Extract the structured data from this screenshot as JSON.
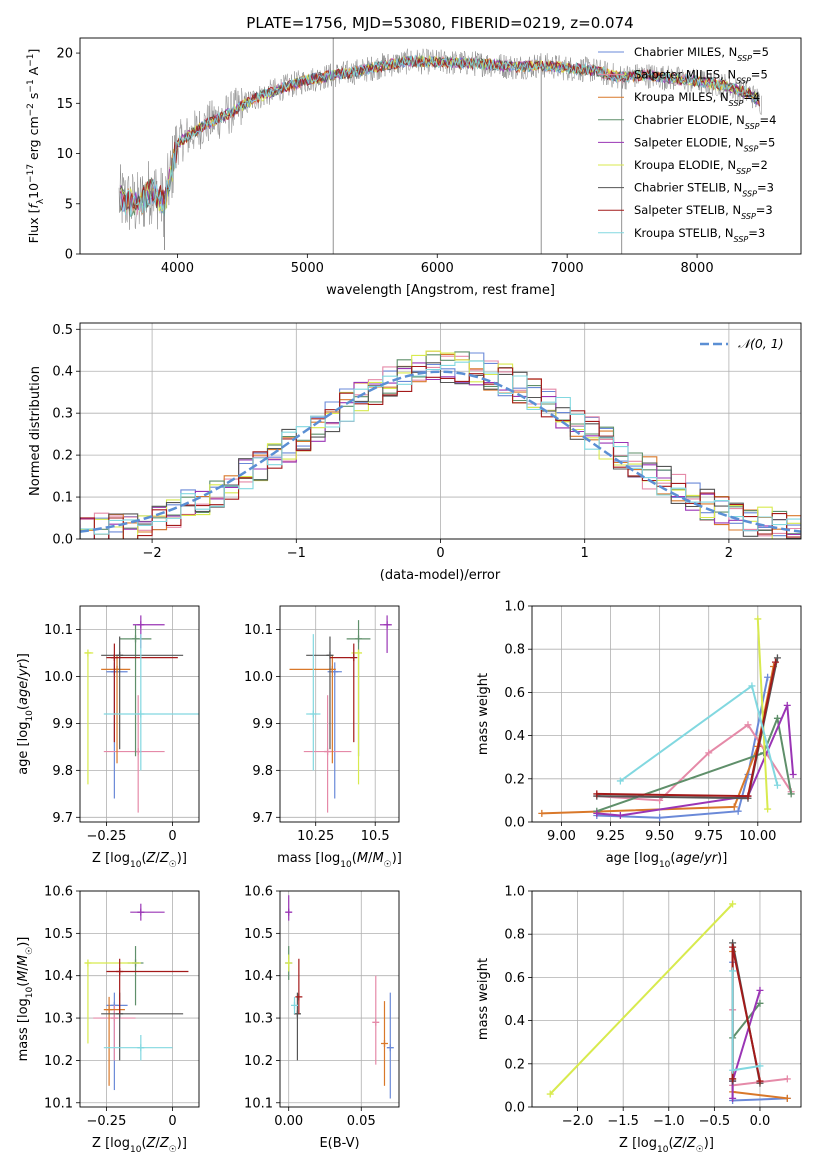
{
  "figure": {
    "title": "PLATE=1756, MJD=53080, FIBERID=0219, z=0.074"
  },
  "palette": {
    "Chabrier MILES": "#6a89d8",
    "Salpeter MILES": "#e58aa8",
    "Kroupa MILES": "#d9782a",
    "Chabrier ELODIE": "#5f8f6a",
    "Salpeter ELODIE": "#9a35b5",
    "Kroupa ELODIE": "#d8ea4e",
    "Chabrier STELIB": "#555555",
    "Salpeter STELIB": "#a31a1a",
    "Kroupa STELIB": "#82d8e0",
    "spectrum": "#888888",
    "normal": "#5b8fd4"
  },
  "chart_data": [
    {
      "id": "spectrum",
      "type": "line",
      "xlabel": "wavelength [Angstrom, rest frame]",
      "ylabel": "Flux [f_λ 10^-17 erg cm^-2 s^-1 A^-1]",
      "xlim": [
        3250,
        8800
      ],
      "ylim": [
        0,
        21.5
      ],
      "xticks": [
        4000,
        5000,
        6000,
        7000,
        8000
      ],
      "yticks": [
        0,
        5,
        10,
        15,
        20
      ],
      "grid": false,
      "legend_position": "top-right",
      "legend": [
        {
          "base": "Chabrier MILES, N",
          "n": "5"
        },
        {
          "base": "Salpeter MILES, N",
          "n": "5"
        },
        {
          "base": "Kroupa MILES, N",
          "n": "4"
        },
        {
          "base": "Chabrier ELODIE, N",
          "n": "4"
        },
        {
          "base": "Salpeter ELODIE, N",
          "n": "5"
        },
        {
          "base": "Kroupa ELODIE, N",
          "n": "2"
        },
        {
          "base": "Chabrier STELIB, N",
          "n": "3"
        },
        {
          "base": "Salpeter STELIB, N",
          "n": "3"
        },
        {
          "base": "Kroupa STELIB, N",
          "n": "3"
        }
      ],
      "continuum": [
        [
          3550,
          5.5
        ],
        [
          3700,
          4.8
        ],
        [
          3800,
          6.5
        ],
        [
          3900,
          5
        ],
        [
          4000,
          11
        ],
        [
          4200,
          12.8
        ],
        [
          4400,
          14
        ],
        [
          4600,
          15.5
        ],
        [
          4800,
          16.5
        ],
        [
          5000,
          17.3
        ],
        [
          5200,
          17.8
        ],
        [
          5400,
          18.2
        ],
        [
          5600,
          18.8
        ],
        [
          5800,
          19.2
        ],
        [
          6000,
          19.1
        ],
        [
          6200,
          19
        ],
        [
          6400,
          18.9
        ],
        [
          6600,
          18.6
        ],
        [
          6800,
          18.8
        ],
        [
          7000,
          18.5
        ],
        [
          7200,
          18.3
        ],
        [
          7400,
          17.6
        ],
        [
          7600,
          17.8
        ],
        [
          7800,
          17.5
        ],
        [
          8000,
          17.2
        ],
        [
          8200,
          16.8
        ],
        [
          8400,
          16
        ],
        [
          8500,
          15
        ]
      ],
      "features": [
        {
          "x": 5199,
          "y0": 0,
          "y1": 21.5
        },
        {
          "x": 6800,
          "y0": 0,
          "y1": 18.5
        },
        {
          "x": 7420,
          "y0": 0,
          "y1": 17.5
        },
        {
          "x": 3900,
          "y0": 0.4,
          "y1": 5
        }
      ]
    },
    {
      "id": "residuals",
      "type": "step-histogram",
      "xlabel": "(data-model)/error",
      "ylabel": "Normed distribution",
      "xlim": [
        -2.5,
        2.5
      ],
      "ylim": [
        0,
        0.515
      ],
      "xticks": [
        -2,
        -1,
        0,
        1,
        2
      ],
      "yticks": [
        0.0,
        0.1,
        0.2,
        0.3,
        0.4,
        0.5
      ],
      "grid": true,
      "legend_position": "top-right",
      "legend_label": "𝒩(0, 1)"
    },
    {
      "id": "age-vs-Z",
      "type": "errorbar",
      "xlabel": "Z [log10(Z/Z☉)]",
      "ylabel": "age [log10(age/yr)]",
      "xlim": [
        -0.35,
        0.1
      ],
      "ylim": [
        9.69,
        10.15
      ],
      "xticks": [
        -0.25,
        0.0
      ],
      "yticks": [
        9.7,
        9.8,
        9.9,
        10.0,
        10.1
      ],
      "grid": true,
      "points": [
        {
          "model": "Chabrier MILES",
          "x": -0.22,
          "xerr": [
            0.03,
            0.05
          ],
          "y": 10.01,
          "yerr": [
            0.27,
            0.02
          ]
        },
        {
          "model": "Salpeter MILES",
          "x": -0.13,
          "xerr": [
            0.13,
            0.1
          ],
          "y": 9.84,
          "yerr": [
            0.13,
            0.12
          ]
        },
        {
          "model": "Kroupa MILES",
          "x": -0.21,
          "xerr": [
            0.06,
            0.05
          ],
          "y": 10.015,
          "yerr": [
            0.2,
            0.03
          ]
        },
        {
          "model": "Chabrier ELODIE",
          "x": -0.14,
          "xerr": [
            0.06,
            0.06
          ],
          "y": 10.08,
          "yerr": [
            0.25,
            0.03
          ]
        },
        {
          "model": "Salpeter ELODIE",
          "x": -0.12,
          "xerr": [
            0.03,
            0.09
          ],
          "y": 10.11,
          "yerr": [
            0.05,
            0.02
          ]
        },
        {
          "model": "Kroupa ELODIE",
          "x": -0.32,
          "xerr": [
            0.01,
            0.02
          ],
          "y": 10.05,
          "yerr": [
            0.28,
            0.0
          ]
        },
        {
          "model": "Chabrier STELIB",
          "x": -0.2,
          "xerr": [
            0.07,
            0.24
          ],
          "y": 10.045,
          "yerr": [
            0.2,
            0.04
          ]
        },
        {
          "model": "Salpeter STELIB",
          "x": -0.22,
          "xerr": [
            0.03,
            0.24
          ],
          "y": 10.04,
          "yerr": [
            0.18,
            0.03
          ]
        },
        {
          "model": "Kroupa STELIB",
          "x": -0.12,
          "xerr": [
            0.14,
            0.22
          ],
          "y": 9.92,
          "yerr": [
            0.12,
            0.17
          ]
        }
      ]
    },
    {
      "id": "age-vs-mass",
      "type": "errorbar",
      "xlabel": "mass [log10(M/M☉)]",
      "ylabel": "",
      "xlim": [
        10.1,
        10.6
      ],
      "ylim": [
        9.69,
        10.15
      ],
      "xticks": [
        10.25,
        10.5
      ],
      "yticks": [
        9.7,
        9.8,
        9.9,
        10.0,
        10.1
      ],
      "grid": true,
      "points": [
        {
          "model": "Chabrier MILES",
          "x": 10.33,
          "xerr": [
            0.03,
            0.03
          ],
          "y": 10.01,
          "yerr": [
            0.27,
            0.02
          ]
        },
        {
          "model": "Salpeter MILES",
          "x": 10.3,
          "xerr": [
            0.1,
            0.1
          ],
          "y": 9.84,
          "yerr": [
            0.13,
            0.12
          ]
        },
        {
          "model": "Kroupa MILES",
          "x": 10.32,
          "xerr": [
            0.18,
            0.0
          ],
          "y": 10.015,
          "yerr": [
            0.2,
            0.03
          ]
        },
        {
          "model": "Chabrier ELODIE",
          "x": 10.43,
          "xerr": [
            0.05,
            0.05
          ],
          "y": 10.08,
          "yerr": [
            0.25,
            0.04
          ]
        },
        {
          "model": "Salpeter ELODIE",
          "x": 10.55,
          "xerr": [
            0.03,
            0.02
          ],
          "y": 10.11,
          "yerr": [
            0.06,
            0.02
          ]
        },
        {
          "model": "Kroupa ELODIE",
          "x": 10.43,
          "xerr": [
            0.03,
            0.0
          ],
          "y": 10.05,
          "yerr": [
            0.28,
            0.0
          ]
        },
        {
          "model": "Chabrier STELIB",
          "x": 10.31,
          "xerr": [
            0.1,
            0.0
          ],
          "y": 10.045,
          "yerr": [
            0.2,
            0.04
          ]
        },
        {
          "model": "Salpeter STELIB",
          "x": 10.41,
          "xerr": [
            0.1,
            0.0
          ],
          "y": 10.04,
          "yerr": [
            0.18,
            0.03
          ]
        },
        {
          "model": "Kroupa STELIB",
          "x": 10.24,
          "xerr": [
            0.03,
            0.03
          ],
          "y": 9.92,
          "yerr": [
            0.12,
            0.17
          ]
        }
      ]
    },
    {
      "id": "weight-vs-age",
      "type": "line",
      "xlabel": "age [log10(age/yr)]",
      "ylabel": "mass weight",
      "xlim": [
        8.85,
        10.22
      ],
      "ylim": [
        0,
        1.0
      ],
      "xticks": [
        9.0,
        9.25,
        9.5,
        9.75,
        10.0
      ],
      "yticks": [
        0.0,
        0.2,
        0.4,
        0.6,
        0.8,
        1.0
      ],
      "xticklabels": [
        "9.00",
        "9.25",
        "9.50",
        "9.75",
        "10.00"
      ],
      "grid": true,
      "series": [
        {
          "model": "Chabrier MILES",
          "x": [
            9.18,
            9.5,
            9.9,
            9.95,
            10.05
          ],
          "y": [
            0.03,
            0.02,
            0.05,
            0.22,
            0.67
          ]
        },
        {
          "model": "Salpeter MILES",
          "x": [
            9.18,
            9.5,
            9.75,
            9.95,
            10.17
          ],
          "y": [
            0.12,
            0.1,
            0.32,
            0.45,
            0.14
          ]
        },
        {
          "model": "Kroupa MILES",
          "x": [
            8.9,
            9.88,
            10.0,
            10.08
          ],
          "y": [
            0.04,
            0.07,
            0.35,
            0.72
          ]
        },
        {
          "model": "Chabrier ELODIE",
          "x": [
            9.18,
            10.03,
            10.1,
            10.17
          ],
          "y": [
            0.05,
            0.32,
            0.48,
            0.13
          ]
        },
        {
          "model": "Salpeter ELODIE",
          "x": [
            9.18,
            9.3,
            9.95,
            10.15,
            10.18
          ],
          "y": [
            0.04,
            0.03,
            0.12,
            0.54,
            0.22
          ]
        },
        {
          "model": "Kroupa ELODIE",
          "x": [
            10.0,
            10.05
          ],
          "y": [
            0.94,
            0.06
          ]
        },
        {
          "model": "Chabrier STELIB",
          "x": [
            9.18,
            9.95,
            10.1
          ],
          "y": [
            0.12,
            0.11,
            0.76
          ]
        },
        {
          "model": "Salpeter STELIB",
          "x": [
            9.18,
            9.95,
            10.09
          ],
          "y": [
            0.13,
            0.12,
            0.74
          ]
        },
        {
          "model": "Kroupa STELIB",
          "x": [
            9.3,
            9.97,
            10.1
          ],
          "y": [
            0.19,
            0.63,
            0.17
          ]
        }
      ]
    },
    {
      "id": "mass-vs-Z",
      "type": "errorbar",
      "xlabel": "Z [log10(Z/Z☉)]",
      "ylabel": "mass [log10(M/M☉)]",
      "xlim": [
        -0.35,
        0.1
      ],
      "ylim": [
        10.09,
        10.6
      ],
      "xticks": [
        -0.25,
        0.0
      ],
      "yticks": [
        10.1,
        10.2,
        10.3,
        10.4,
        10.5,
        10.6
      ],
      "grid": true,
      "points": [
        {
          "model": "Chabrier MILES",
          "x": -0.22,
          "xerr": [
            0.03,
            0.05
          ],
          "y": 10.33,
          "yerr": [
            0.2,
            0.03
          ]
        },
        {
          "model": "Salpeter MILES",
          "x": -0.22,
          "xerr": [
            0.08,
            0.08
          ],
          "y": 10.3,
          "yerr": [
            0.1,
            0.03
          ]
        },
        {
          "model": "Kroupa MILES",
          "x": -0.24,
          "xerr": [
            0.02,
            0.06
          ],
          "y": 10.32,
          "yerr": [
            0.18,
            0.03
          ]
        },
        {
          "model": "Chabrier ELODIE",
          "x": -0.14,
          "xerr": [
            0.03,
            0.03
          ],
          "y": 10.43,
          "yerr": [
            0.1,
            0.04
          ]
        },
        {
          "model": "Salpeter ELODIE",
          "x": -0.12,
          "xerr": [
            0.04,
            0.09
          ],
          "y": 10.55,
          "yerr": [
            0.02,
            0.02
          ]
        },
        {
          "model": "Kroupa ELODIE",
          "x": -0.32,
          "xerr": [
            0.01,
            0.2
          ],
          "y": 10.43,
          "yerr": [
            0.19,
            0.0
          ]
        },
        {
          "model": "Chabrier STELIB",
          "x": -0.2,
          "xerr": [
            0.07,
            0.24
          ],
          "y": 10.31,
          "yerr": [
            0.11,
            0.05
          ]
        },
        {
          "model": "Salpeter STELIB",
          "x": -0.2,
          "xerr": [
            0.05,
            0.26
          ],
          "y": 10.41,
          "yerr": [
            0.1,
            0.03
          ]
        },
        {
          "model": "Kroupa STELIB",
          "x": -0.12,
          "xerr": [
            0.14,
            0.12
          ],
          "y": 10.23,
          "yerr": [
            0.03,
            0.03
          ]
        }
      ]
    },
    {
      "id": "mass-vs-EBV",
      "type": "errorbar",
      "xlabel": "E(B-V)",
      "ylabel": "",
      "xlim": [
        -0.006,
        0.076
      ],
      "ylim": [
        10.09,
        10.6
      ],
      "xticks": [
        0.0,
        0.05
      ],
      "yticks": [
        10.1,
        10.2,
        10.3,
        10.4,
        10.5,
        10.6
      ],
      "xticklabels": [
        "0.00",
        "0.05"
      ],
      "grid": true,
      "points": [
        {
          "model": "Chabrier MILES",
          "x": 0.07,
          "xerr": [
            0,
            0
          ],
          "y": 10.23,
          "yerr": [
            0.12,
            0.13
          ]
        },
        {
          "model": "Salpeter MILES",
          "x": 0.06,
          "xerr": [
            0,
            0
          ],
          "y": 10.29,
          "yerr": [
            0.1,
            0.11
          ]
        },
        {
          "model": "Kroupa MILES",
          "x": 0.066,
          "xerr": [
            0,
            0
          ],
          "y": 10.24,
          "yerr": [
            0.1,
            0.1
          ]
        },
        {
          "model": "Chabrier ELODIE",
          "x": 0.0,
          "xerr": [
            0,
            0
          ],
          "y": 10.43,
          "yerr": [
            0.04,
            0.04
          ]
        },
        {
          "model": "Salpeter ELODIE",
          "x": 0.0,
          "xerr": [
            0,
            0
          ],
          "y": 10.55,
          "yerr": [
            0.02,
            0.04
          ]
        },
        {
          "model": "Kroupa ELODIE",
          "x": 0.0,
          "xerr": [
            0,
            0
          ],
          "y": 10.43,
          "yerr": [
            0.02,
            0.02
          ]
        },
        {
          "model": "Chabrier STELIB",
          "x": 0.006,
          "xerr": [
            0,
            0
          ],
          "y": 10.31,
          "yerr": [
            0.11,
            0.05
          ]
        },
        {
          "model": "Salpeter STELIB",
          "x": 0.007,
          "xerr": [
            0,
            0
          ],
          "y": 10.35,
          "yerr": [
            0.04,
            0.09
          ]
        },
        {
          "model": "Kroupa STELIB",
          "x": 0.004,
          "xerr": [
            0,
            0
          ],
          "y": 10.33,
          "yerr": [
            0.02,
            0.02
          ]
        }
      ]
    },
    {
      "id": "weight-vs-Z",
      "type": "line",
      "xlabel": "Z [log10(Z/Z☉)]",
      "ylabel": "mass weight",
      "xlim": [
        -2.5,
        0.45
      ],
      "ylim": [
        0,
        1.0
      ],
      "xticks": [
        -2.0,
        -1.5,
        -1.0,
        -0.5,
        0.0
      ],
      "yticks": [
        0.0,
        0.2,
        0.4,
        0.6,
        0.8,
        1.0
      ],
      "xticklabels": [
        "−2.0",
        "−1.5",
        "−1.0",
        "−0.5",
        "0.0"
      ],
      "grid": true,
      "series": [
        {
          "model": "Chabrier MILES",
          "x": [
            -0.3,
            -0.3,
            0.3
          ],
          "y": [
            0.67,
            0.03,
            0.04
          ]
        },
        {
          "model": "Salpeter MILES",
          "x": [
            -0.3,
            -0.3,
            0.3
          ],
          "y": [
            0.45,
            0.1,
            0.13
          ]
        },
        {
          "model": "Kroupa MILES",
          "x": [
            -0.3,
            -0.3,
            0.3
          ],
          "y": [
            0.72,
            0.07,
            0.04
          ]
        },
        {
          "model": "Chabrier ELODIE",
          "x": [
            -0.3,
            -0.3,
            0.0
          ],
          "y": [
            0.13,
            0.32,
            0.48
          ]
        },
        {
          "model": "Salpeter ELODIE",
          "x": [
            -0.3,
            -0.3,
            0.0
          ],
          "y": [
            0.04,
            0.12,
            0.54
          ]
        },
        {
          "model": "Kroupa ELODIE",
          "x": [
            -2.3,
            -0.3
          ],
          "y": [
            0.06,
            0.94
          ]
        },
        {
          "model": "Chabrier STELIB",
          "x": [
            -0.3,
            -0.3,
            0.0
          ],
          "y": [
            0.12,
            0.76,
            0.11
          ]
        },
        {
          "model": "Salpeter STELIB",
          "x": [
            -0.3,
            -0.3,
            0.0
          ],
          "y": [
            0.13,
            0.74,
            0.12
          ]
        },
        {
          "model": "Kroupa STELIB",
          "x": [
            -0.3,
            -0.3,
            0.0
          ],
          "y": [
            0.63,
            0.17,
            0.19
          ]
        }
      ]
    }
  ]
}
